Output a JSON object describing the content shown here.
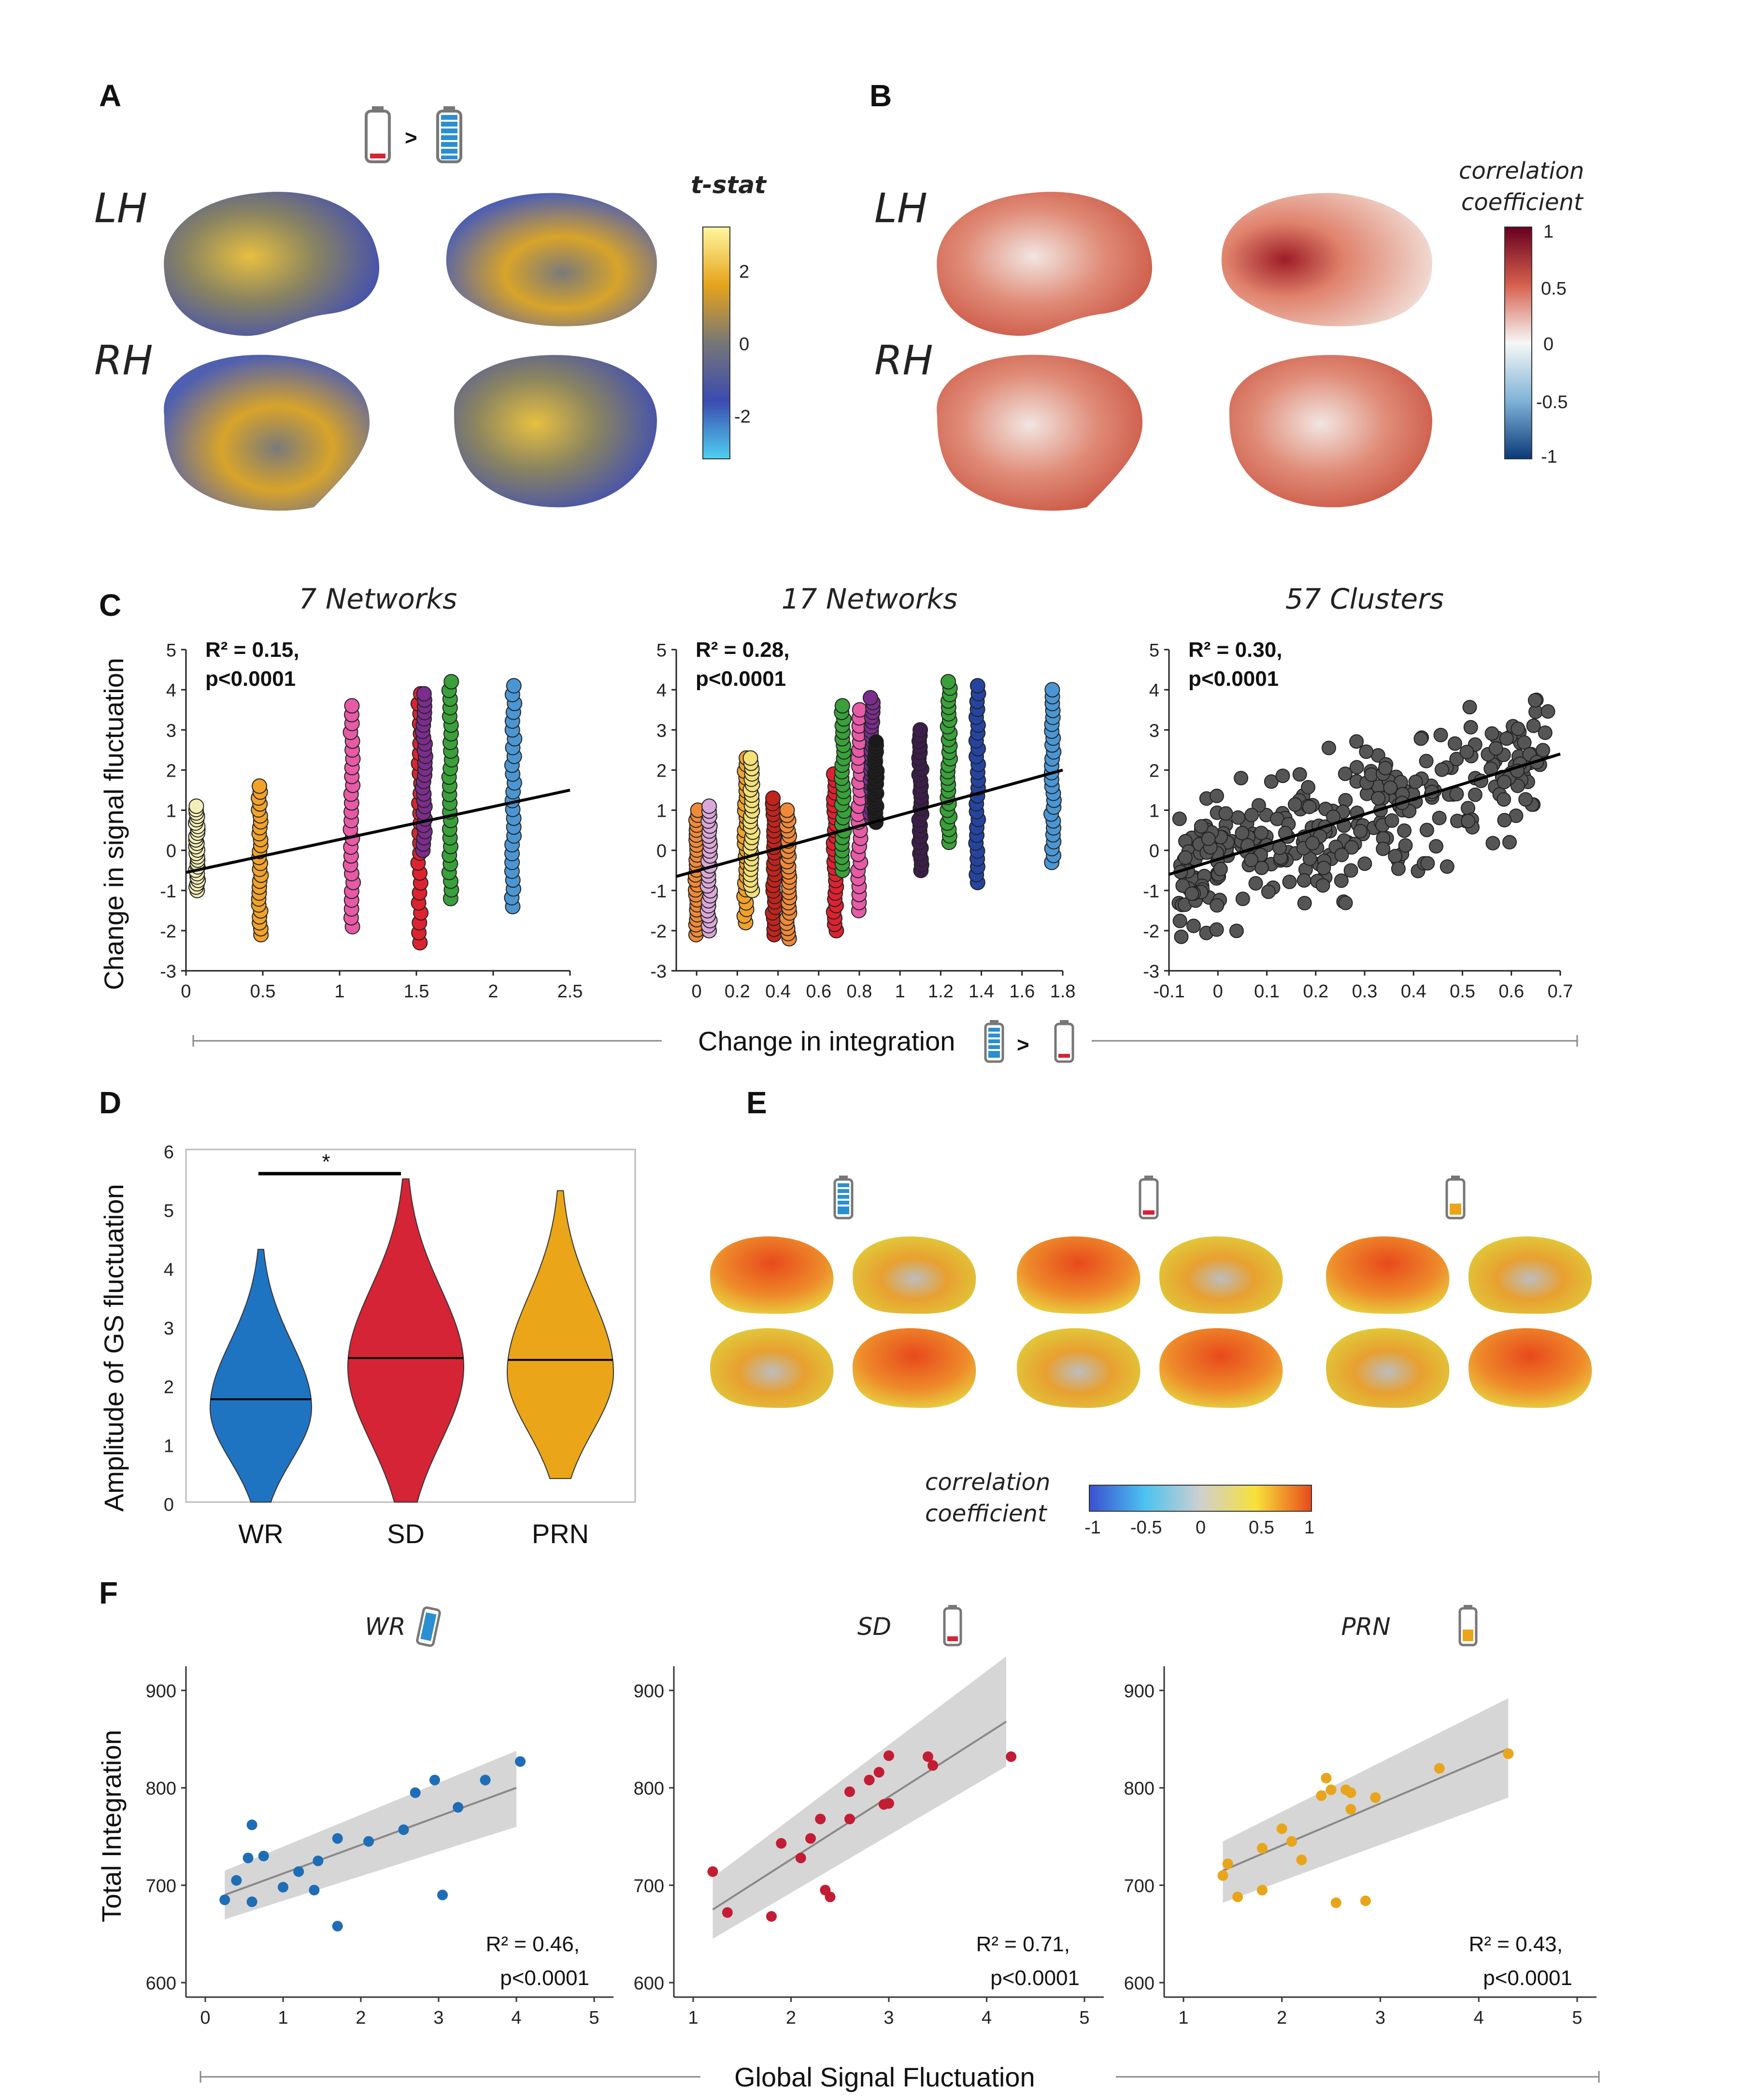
{
  "panel_letters": {
    "A": "A",
    "B": "B",
    "C": "C",
    "D": "D",
    "E": "E",
    "F": "F"
  },
  "panelA": {
    "comparison_symbol": ">",
    "hemi": [
      "LH",
      "RH"
    ],
    "colorbar_title": "t-stat",
    "colorbar_ticks": [
      "2",
      "0",
      "-2"
    ],
    "colors": [
      "#4fd0f0",
      "#3b4bb0",
      "#777777",
      "#e6a41a",
      "#fff6a0"
    ]
  },
  "panelB": {
    "hemi": [
      "LH",
      "RH"
    ],
    "colorbar_title_1": "correlation",
    "colorbar_title_2": "coefficient",
    "colorbar_ticks": [
      "1",
      "0.5",
      "0",
      "-0.5",
      "-1"
    ],
    "colors": [
      "#0a3a7a",
      "#7fb3d6",
      "#f7f7f7",
      "#d6604d",
      "#67001f"
    ]
  },
  "panelC": {
    "ylabel": "Change in signal fluctuation",
    "xlabel": "Change in integration",
    "comparison_symbol": ">"
  },
  "panelD": {
    "ylabel": "Amplitude of GS fluctuation",
    "significance": "*"
  },
  "panelE": {
    "colorbar_title_1": "correlation",
    "colorbar_title_2": "coefficient",
    "colorbar_ticks": [
      "-1",
      "-0.5",
      "0",
      "0.5",
      "1"
    ],
    "colors": [
      "#3a4fd0",
      "#4cc3f0",
      "#cfcfcf",
      "#f7e13a",
      "#e8491c"
    ]
  },
  "panelF": {
    "ylabel": "Total Integration",
    "xlabel": "Global Signal Fluctuation"
  },
  "chart_data": [
    {
      "type": "scatter",
      "title": "7 Networks",
      "annotation": [
        "R² = 0.15,",
        "p<0.0001"
      ],
      "xlim": [
        0,
        2.5
      ],
      "ylim": [
        -3,
        5
      ],
      "xticks": [
        0,
        0.5,
        1,
        1.5,
        2,
        2.5
      ],
      "yticks": [
        -3,
        -2,
        -1,
        0,
        1,
        2,
        3,
        4,
        5
      ],
      "fit": {
        "x": [
          0,
          2.5
        ],
        "y": [
          -0.55,
          1.5
        ]
      },
      "groups": [
        {
          "x": 0.07,
          "ymin": -1.0,
          "ymax": 1.1,
          "color": "#f3efb8"
        },
        {
          "x": 0.48,
          "ymin": -2.1,
          "ymax": 1.6,
          "color": "#f0a22b"
        },
        {
          "x": 1.08,
          "ymin": -1.9,
          "ymax": 3.6,
          "color": "#e65aa6"
        },
        {
          "x": 1.52,
          "ymin": -2.3,
          "ymax": 3.9,
          "color": "#dd2230"
        },
        {
          "x": 1.55,
          "ymin": 0.0,
          "ymax": 3.9,
          "color": "#7b2d8c"
        },
        {
          "x": 1.72,
          "ymin": -1.2,
          "ymax": 4.2,
          "color": "#39a03a"
        },
        {
          "x": 2.13,
          "ymin": -1.4,
          "ymax": 4.1,
          "color": "#4b96d2"
        }
      ]
    },
    {
      "type": "scatter",
      "title": "17 Networks",
      "annotation": [
        "R² = 0.28,",
        "p<0.0001"
      ],
      "xlim": [
        -0.1,
        1.8
      ],
      "ylim": [
        -3,
        5
      ],
      "xticks": [
        0,
        0.2,
        0.4,
        0.6,
        0.8,
        1.0,
        1.2,
        1.4,
        1.6,
        1.8
      ],
      "yticks": [
        -3,
        -2,
        -1,
        0,
        1,
        2,
        3,
        4,
        5
      ],
      "fit": {
        "x": [
          -0.1,
          1.8
        ],
        "y": [
          -0.65,
          2.0
        ]
      },
      "groups": [
        {
          "x": 0.0,
          "ymin": -2.1,
          "ymax": 1.0,
          "color": "#ee8a3a"
        },
        {
          "x": 0.06,
          "ymin": -2.0,
          "ymax": 1.1,
          "color": "#d9a8d8"
        },
        {
          "x": 0.24,
          "ymin": -1.8,
          "ymax": 2.3,
          "color": "#f0a22b"
        },
        {
          "x": 0.27,
          "ymin": -1.0,
          "ymax": 2.3,
          "color": "#f3e07a"
        },
        {
          "x": 0.38,
          "ymin": -2.1,
          "ymax": 1.3,
          "color": "#c0241d"
        },
        {
          "x": 0.45,
          "ymin": -2.2,
          "ymax": 1.0,
          "color": "#ee8a3a"
        },
        {
          "x": 0.68,
          "ymin": -2.0,
          "ymax": 1.9,
          "color": "#dd2230"
        },
        {
          "x": 0.72,
          "ymin": -0.5,
          "ymax": 3.6,
          "color": "#39a03a"
        },
        {
          "x": 0.8,
          "ymin": -1.5,
          "ymax": 3.5,
          "color": "#e65aa6"
        },
        {
          "x": 0.86,
          "ymin": 0.8,
          "ymax": 3.8,
          "color": "#7b2d8c"
        },
        {
          "x": 0.88,
          "ymin": 0.7,
          "ymax": 2.7,
          "color": "#1a1a1a"
        },
        {
          "x": 1.1,
          "ymin": -0.5,
          "ymax": 3.0,
          "color": "#3c1e4a"
        },
        {
          "x": 1.24,
          "ymin": 0.2,
          "ymax": 4.2,
          "color": "#39a03a"
        },
        {
          "x": 1.38,
          "ymin": -0.8,
          "ymax": 4.1,
          "color": "#2544a0"
        },
        {
          "x": 1.75,
          "ymin": -0.3,
          "ymax": 4.0,
          "color": "#4b96d2"
        }
      ]
    },
    {
      "type": "scatter",
      "title": "57 Clusters",
      "annotation": [
        "R² = 0.30,",
        "p<0.0001"
      ],
      "xlim": [
        -0.1,
        0.7
      ],
      "ylim": [
        -3,
        5
      ],
      "xticks": [
        -0.1,
        0,
        0.1,
        0.2,
        0.3,
        0.4,
        0.5,
        0.6,
        0.7
      ],
      "yticks": [
        -3,
        -2,
        -1,
        0,
        1,
        2,
        3,
        4,
        5
      ],
      "fit": {
        "x": [
          -0.1,
          0.7
        ],
        "y": [
          -0.6,
          2.4
        ]
      },
      "color": "#555555",
      "points_note": "dense cloud around fit line"
    },
    {
      "type": "violin",
      "categories": [
        "WR",
        "SD",
        "PRN"
      ],
      "ylim": [
        0,
        6
      ],
      "yticks": [
        0,
        1,
        2,
        3,
        4,
        5,
        6
      ],
      "medians": [
        1.75,
        2.45,
        2.42
      ],
      "ranges": [
        [
          0.0,
          4.3
        ],
        [
          0.0,
          5.5
        ],
        [
          0.4,
          5.3
        ]
      ],
      "modes": [
        1.6,
        2.3,
        2.2
      ],
      "colors": [
        "#1f74c2",
        "#d52435",
        "#eaa519"
      ]
    },
    {
      "type": "scatter",
      "title": "WR",
      "annotation": [
        "R² = 0.46,",
        "p<0.0001"
      ],
      "color": "#1f6db5",
      "xlim": [
        0,
        5
      ],
      "ylim": [
        600,
        900
      ],
      "xticks": [
        0,
        1,
        2,
        3,
        4,
        5
      ],
      "yticks": [
        600,
        700,
        800,
        900
      ],
      "fit": {
        "x": [
          0.25,
          4.0
        ],
        "y": [
          690,
          800
        ]
      },
      "band": {
        "x": [
          0.25,
          4.0
        ],
        "lo": [
          665,
          760
        ],
        "hi": [
          715,
          838
        ]
      },
      "points": [
        [
          0.25,
          685
        ],
        [
          0.4,
          705
        ],
        [
          0.55,
          728
        ],
        [
          0.6,
          683
        ],
        [
          0.6,
          762
        ],
        [
          0.75,
          730
        ],
        [
          1.0,
          698
        ],
        [
          1.2,
          714
        ],
        [
          1.4,
          695
        ],
        [
          1.45,
          725
        ],
        [
          1.7,
          748
        ],
        [
          1.7,
          658
        ],
        [
          2.1,
          745
        ],
        [
          2.55,
          757
        ],
        [
          2.7,
          795
        ],
        [
          2.95,
          808
        ],
        [
          3.05,
          690
        ],
        [
          3.25,
          780
        ],
        [
          3.6,
          808
        ],
        [
          4.05,
          827
        ]
      ]
    },
    {
      "type": "scatter",
      "title": "SD",
      "annotation": [
        "R² = 0.71,",
        "p<0.0001"
      ],
      "color": "#c21d34",
      "xlim": [
        1,
        5
      ],
      "ylim": [
        600,
        900
      ],
      "xticks": [
        1,
        2,
        3,
        4,
        5
      ],
      "yticks": [
        600,
        700,
        800,
        900
      ],
      "fit": {
        "x": [
          1.2,
          4.2
        ],
        "y": [
          675,
          868
        ]
      },
      "band": {
        "x": [
          1.2,
          4.2
        ],
        "lo": [
          645,
          822
        ],
        "hi": [
          708,
          935
        ]
      },
      "points": [
        [
          1.2,
          714
        ],
        [
          1.35,
          672
        ],
        [
          1.8,
          668
        ],
        [
          1.9,
          743
        ],
        [
          2.1,
          728
        ],
        [
          2.2,
          748
        ],
        [
          2.3,
          768
        ],
        [
          2.35,
          695
        ],
        [
          2.4,
          688
        ],
        [
          2.6,
          768
        ],
        [
          2.6,
          796
        ],
        [
          2.8,
          808
        ],
        [
          2.9,
          816
        ],
        [
          2.95,
          783
        ],
        [
          3.0,
          833
        ],
        [
          3.0,
          784
        ],
        [
          3.4,
          832
        ],
        [
          3.45,
          823
        ],
        [
          4.25,
          832
        ]
      ]
    },
    {
      "type": "scatter",
      "title": "PRN",
      "annotation": [
        "R² = 0.43,",
        "p<0.0001"
      ],
      "color": "#e8a51b",
      "xlim": [
        1,
        5
      ],
      "ylim": [
        600,
        900
      ],
      "xticks": [
        1,
        2,
        3,
        4,
        5
      ],
      "yticks": [
        600,
        700,
        800,
        900
      ],
      "fit": {
        "x": [
          1.4,
          4.3
        ],
        "y": [
          715,
          840
        ]
      },
      "band": {
        "x": [
          1.4,
          4.3
        ],
        "lo": [
          682,
          790
        ],
        "hi": [
          745,
          892
        ]
      },
      "points": [
        [
          1.4,
          710
        ],
        [
          1.45,
          722
        ],
        [
          1.55,
          688
        ],
        [
          1.8,
          738
        ],
        [
          1.8,
          695
        ],
        [
          2.0,
          758
        ],
        [
          2.1,
          745
        ],
        [
          2.2,
          726
        ],
        [
          2.4,
          792
        ],
        [
          2.45,
          810
        ],
        [
          2.5,
          798
        ],
        [
          2.55,
          682
        ],
        [
          2.65,
          798
        ],
        [
          2.7,
          778
        ],
        [
          2.7,
          795
        ],
        [
          2.85,
          684
        ],
        [
          2.95,
          790
        ],
        [
          3.6,
          820
        ],
        [
          4.3,
          835
        ]
      ]
    }
  ]
}
